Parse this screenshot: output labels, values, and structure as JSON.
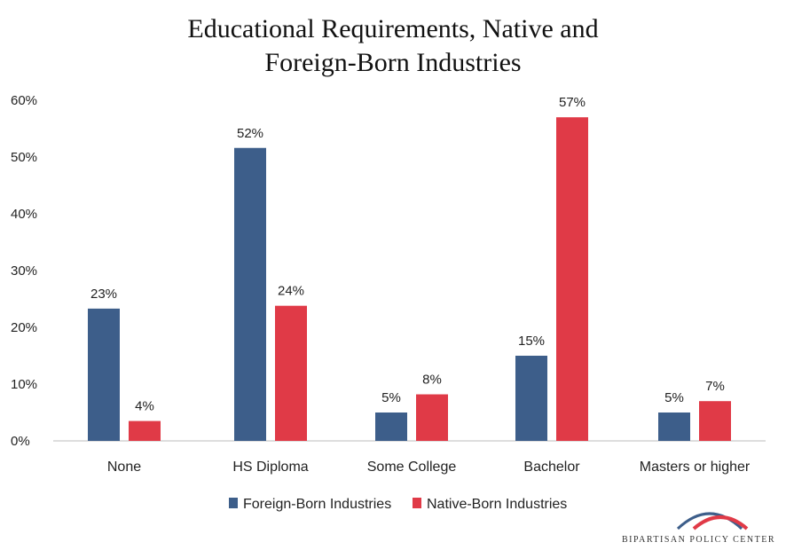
{
  "title_line1": "Educational Requirements, Native and",
  "title_line2": "Foreign-Born Industries",
  "logo": {
    "text": "BIPARTISAN POLICY CENTER"
  },
  "colors": {
    "foreign": "#3d5e8a",
    "native": "#e03a47",
    "axis": "#bbbbbb"
  },
  "chart_data": {
    "type": "bar",
    "categories": [
      "None",
      "HS Diploma",
      "Some College",
      "Bachelor",
      "Masters or higher"
    ],
    "series": [
      {
        "name": "Foreign-Born Industries",
        "values": [
          23.3,
          51.6,
          5,
          15,
          5
        ],
        "labels": [
          "23%",
          "52%",
          "5%",
          "15%",
          "5%"
        ]
      },
      {
        "name": "Native-Born Industries",
        "values": [
          3.5,
          23.8,
          8.2,
          57,
          7
        ],
        "labels": [
          "4%",
          "24%",
          "8%",
          "57%",
          "7%"
        ]
      }
    ],
    "ylim": [
      0,
      60
    ],
    "yticks": [
      0,
      10,
      20,
      30,
      40,
      50,
      60
    ],
    "ytick_labels": [
      "0%",
      "10%",
      "20%",
      "30%",
      "40%",
      "50%",
      "60%"
    ],
    "legend_position": "bottom"
  }
}
